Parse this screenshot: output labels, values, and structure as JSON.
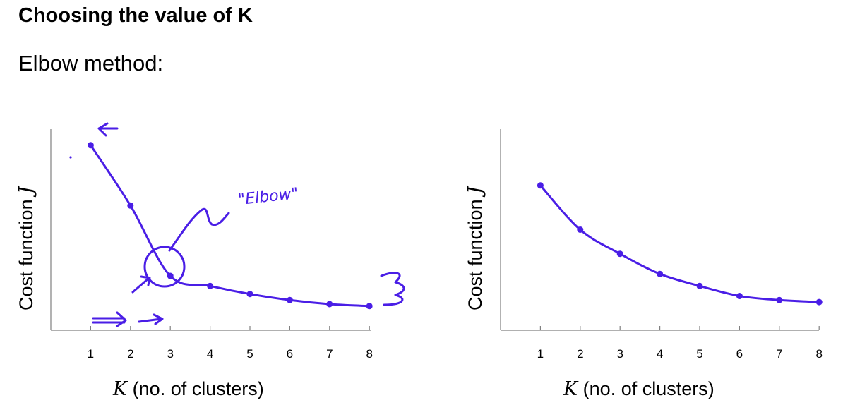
{
  "page": {
    "title": "Choosing the value of K",
    "subtitle": "Elbow method:"
  },
  "chart_data": [
    {
      "type": "line",
      "name": "elbow-curve",
      "ylabel_text": "Cost function ",
      "ylabel_var": "J",
      "xlabel_var": "K",
      "xlabel_text": " (no. of clusters)",
      "categories": [
        "1",
        "2",
        "3",
        "4",
        "5",
        "6",
        "7",
        "8"
      ],
      "x": [
        1,
        2,
        3,
        4,
        5,
        6,
        7,
        8
      ],
      "values": [
        0.92,
        0.62,
        0.27,
        0.22,
        0.18,
        0.15,
        0.13,
        0.12
      ],
      "ylim": [
        0,
        1
      ],
      "xlim": [
        0,
        8
      ],
      "annotation": "\"Elbow\""
    },
    {
      "type": "line",
      "name": "smooth-curve",
      "ylabel_text": "Cost function ",
      "ylabel_var": "J",
      "xlabel_var": "K",
      "xlabel_text": " (no. of clusters)",
      "categories": [
        "1",
        "2",
        "3",
        "4",
        "5",
        "6",
        "7",
        "8"
      ],
      "x": [
        1,
        2,
        3,
        4,
        5,
        6,
        7,
        8
      ],
      "values": [
        0.72,
        0.5,
        0.38,
        0.28,
        0.22,
        0.17,
        0.15,
        0.14
      ],
      "ylim": [
        0,
        1
      ],
      "xlim": [
        0,
        8
      ]
    }
  ]
}
